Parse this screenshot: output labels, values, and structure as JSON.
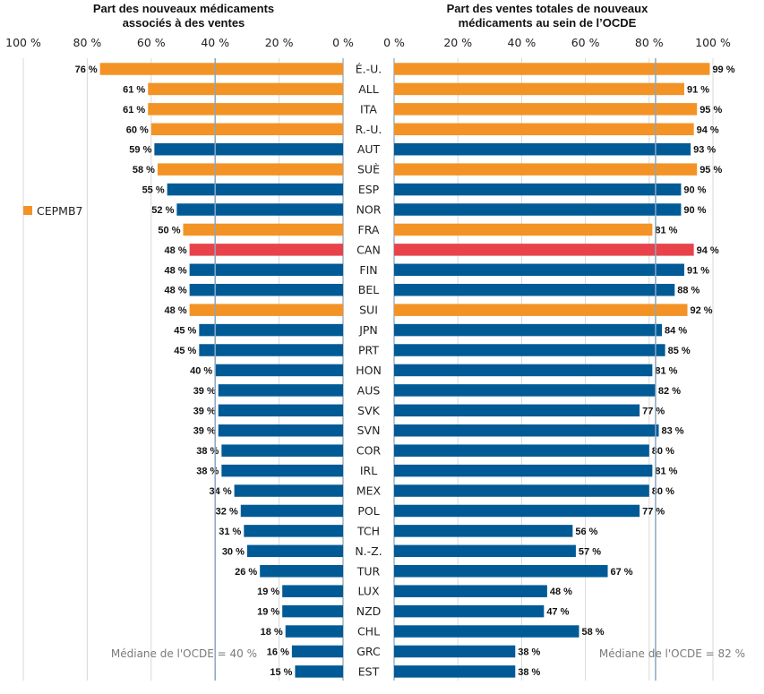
{
  "chart_data": [
    {
      "type": "bar",
      "orientation": "horizontal",
      "direction": "right-to-left",
      "title": "Part des nouveaux médicaments associés à des ventes",
      "xlim": [
        0,
        100
      ],
      "ticks": [
        "100 %",
        "80 %",
        "60 %",
        "40 %",
        "20 %",
        "0 %"
      ],
      "tick_values": [
        100,
        80,
        60,
        40,
        20,
        0
      ],
      "grid": true,
      "median": {
        "value": 40,
        "label": "Médiane de l'OCDE  = 40 %"
      },
      "categories": [
        "É.-U.",
        "ALL",
        "ITA",
        "R.-U.",
        "AUT",
        "SUÈ",
        "ESP",
        "NOR",
        "FRA",
        "CAN",
        "FIN",
        "BEL",
        "SUI",
        "JPN",
        "PRT",
        "HON",
        "AUS",
        "SVK",
        "SVN",
        "COR",
        "IRL",
        "MEX",
        "POL",
        "TCH",
        "N.-Z.",
        "TUR",
        "LUX",
        "NZD",
        "CHL",
        "GRC",
        "EST"
      ],
      "values": [
        76,
        61,
        61,
        60,
        59,
        58,
        55,
        52,
        50,
        48,
        48,
        48,
        48,
        45,
        45,
        40,
        39,
        39,
        39,
        38,
        38,
        34,
        32,
        31,
        30,
        26,
        19,
        19,
        18,
        16,
        15
      ]
    },
    {
      "type": "bar",
      "orientation": "horizontal",
      "direction": "left-to-right",
      "title": "Part des ventes totales de nouveaux médicaments au sein de l’OCDE",
      "xlim": [
        0,
        100
      ],
      "ticks": [
        "0 %",
        "20 %",
        "40 %",
        "60 %",
        "80 %",
        "100 %"
      ],
      "tick_values": [
        0,
        20,
        40,
        60,
        80,
        100
      ],
      "grid": true,
      "median": {
        "value": 82,
        "label": "Médiane de  l'OCDE = 82 %"
      },
      "categories": [
        "É.-U.",
        "ALL",
        "ITA",
        "R.-U.",
        "AUT",
        "SUÈ",
        "ESP",
        "NOR",
        "FRA",
        "CAN",
        "FIN",
        "BEL",
        "SUI",
        "JPN",
        "PRT",
        "HON",
        "AUS",
        "SVK",
        "SVN",
        "COR",
        "IRL",
        "MEX",
        "POL",
        "TCH",
        "N.-Z.",
        "TUR",
        "LUX",
        "NZD",
        "CHL",
        "GRC",
        "EST"
      ],
      "values": [
        99,
        91,
        95,
        94,
        93,
        95,
        90,
        90,
        81,
        94,
        91,
        88,
        92,
        84,
        85,
        81,
        82,
        77,
        83,
        80,
        81,
        80,
        77,
        56,
        57,
        67,
        48,
        47,
        58,
        38,
        38
      ]
    }
  ],
  "groups": [
    "pmprb7",
    "pmprb7",
    "pmprb7",
    "pmprb7",
    "other",
    "pmprb7",
    "other",
    "other",
    "pmprb7",
    "canada",
    "other",
    "other",
    "pmprb7",
    "other",
    "other",
    "other",
    "other",
    "other",
    "other",
    "other",
    "other",
    "other",
    "other",
    "other",
    "other",
    "other",
    "other",
    "other",
    "other",
    "other",
    "other"
  ],
  "colors": {
    "pmprb7": "#f39325",
    "canada": "#e8434b",
    "other": "#005a96",
    "grid": "#d9d9d9",
    "median": "#8aa6bf",
    "axis": "#b8c7d3"
  },
  "legend": {
    "label": "CEPMB7",
    "color": "#f39325"
  },
  "value_suffix": " %"
}
